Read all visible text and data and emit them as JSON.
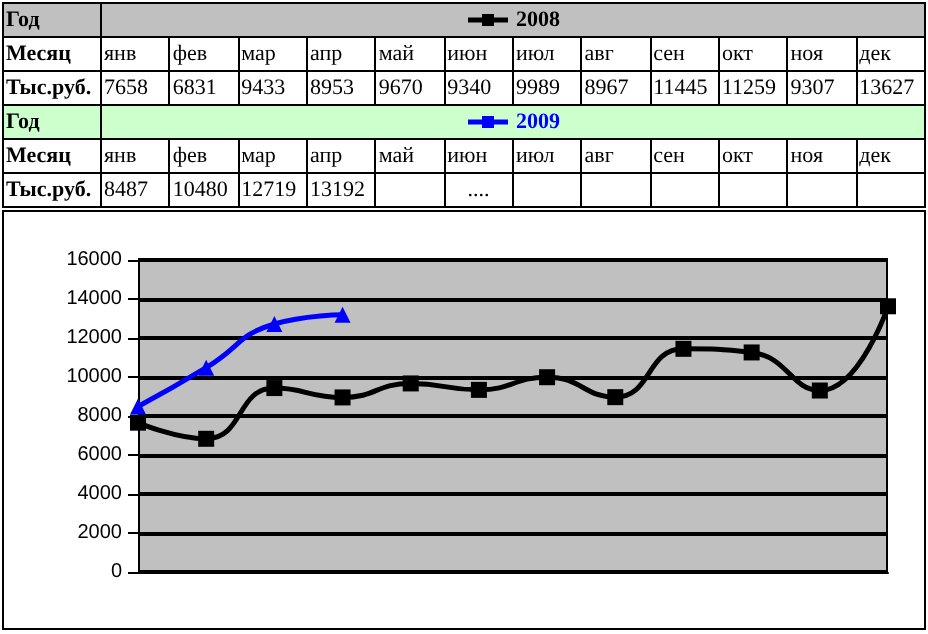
{
  "chart_data": {
    "type": "line",
    "legend_title": "Год",
    "xlabel": "Месяц",
    "ylabel": "Тыс.руб.",
    "categories": [
      "янв",
      "фев",
      "мар",
      "апр",
      "май",
      "июн",
      "июл",
      "авг",
      "сен",
      "окт",
      "ноя",
      "дек"
    ],
    "series": [
      {
        "name": "2008",
        "color": "#000000",
        "marker": "square",
        "values": [
          7658,
          6831,
          9433,
          8953,
          9670,
          9340,
          9989,
          8967,
          11445,
          11259,
          9307,
          13627
        ]
      },
      {
        "name": "2009",
        "color": "#0000ff",
        "marker": "triangle",
        "values": [
          8487,
          10480,
          12719,
          13192,
          null,
          null,
          null,
          null,
          null,
          null,
          null,
          null
        ]
      }
    ],
    "annotations": [
      "...."
    ],
    "ylim": [
      0,
      16000
    ],
    "yticks": [
      0,
      2000,
      4000,
      6000,
      8000,
      10000,
      12000,
      14000,
      16000
    ],
    "grid": "y",
    "legend": "top",
    "tick_labels": "y",
    "data_labels": true
  }
}
